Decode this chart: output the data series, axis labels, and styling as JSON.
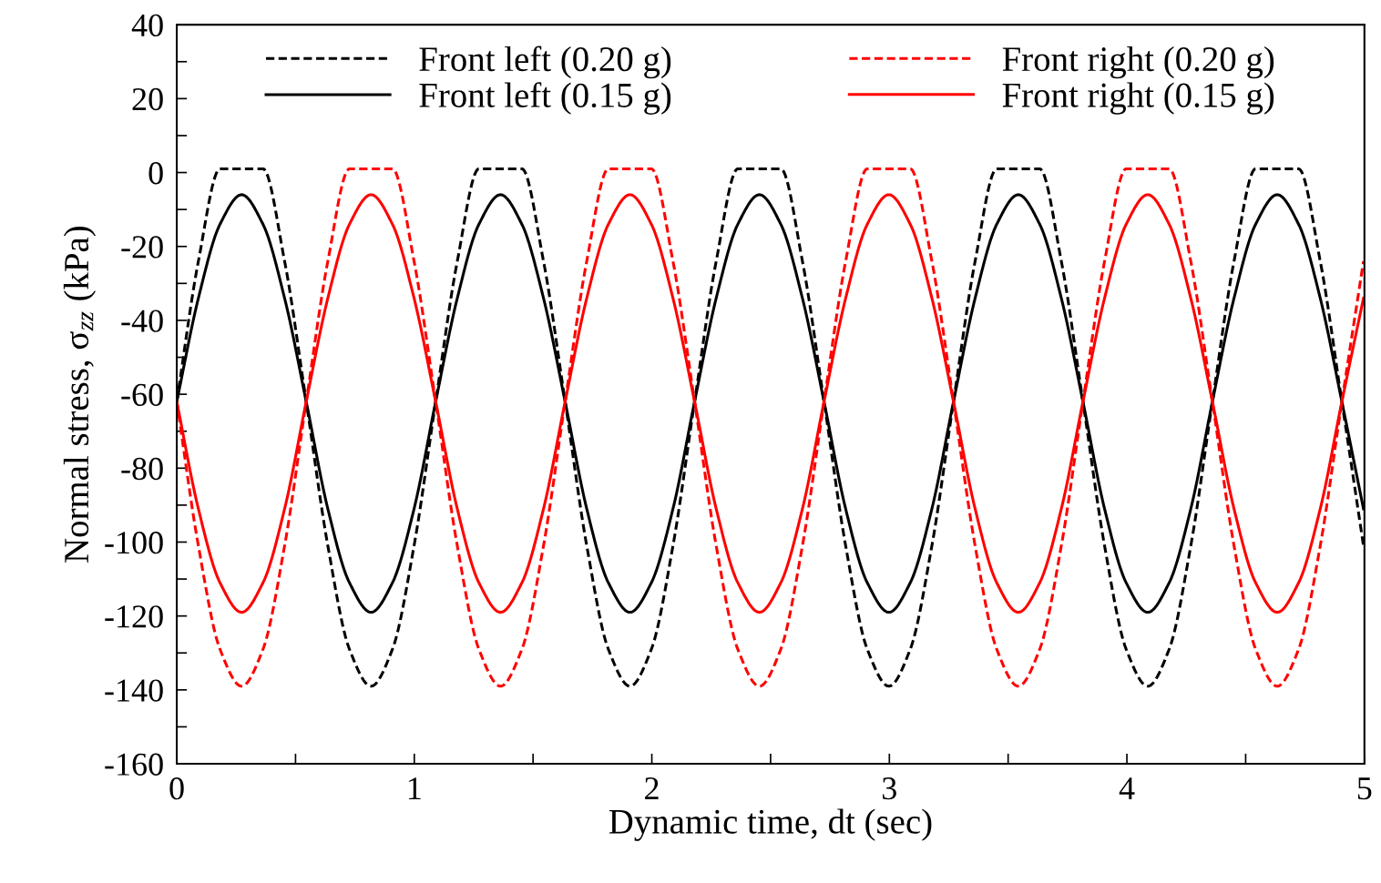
{
  "chart_data": {
    "type": "line",
    "xlabel": "Dynamic time, dt (sec)",
    "ylabel": "Normal stress, σ$_{zz}$ (kPa)",
    "x": [
      0,
      0.091,
      0.182,
      0.273,
      0.363,
      0.454,
      0.545,
      0.636,
      0.727,
      0.818,
      0.908,
      0.999,
      1.09,
      1.181,
      1.272,
      1.363,
      1.453,
      1.544,
      1.635,
      1.726,
      1.817,
      1.908,
      1.998,
      2.089,
      2.18,
      2.271,
      2.362,
      2.453,
      2.543,
      2.634,
      2.725,
      2.816,
      2.907,
      2.998,
      3.088,
      3.179,
      3.27,
      3.361,
      3.452,
      3.543,
      3.633,
      3.724,
      3.815,
      3.906,
      3.997,
      4.088,
      4.178,
      4.269,
      4.36,
      4.451,
      4.542,
      4.633,
      4.723,
      4.814,
      4.905,
      4.996
    ],
    "series": [
      {
        "name": "Front left (0.20 g)",
        "color": "#000000",
        "line_style": "dashed",
        "values": [
          -62,
          -24,
          1,
          1,
          1,
          -24,
          -62,
          -101,
          -129,
          -139,
          -129,
          -101,
          -62,
          -24,
          1,
          1,
          1,
          -24,
          -62,
          -101,
          -129,
          -139,
          -129,
          -101,
          -62,
          -24,
          1,
          1,
          1,
          -24,
          -62,
          -101,
          -129,
          -139,
          -129,
          -101,
          -62,
          -24,
          1,
          1,
          1,
          -24,
          -62,
          -101,
          -129,
          -139,
          -129,
          -101,
          -62,
          -24,
          1,
          1,
          1,
          -24,
          -62,
          -101
        ]
      },
      {
        "name": "Front left (0.15 g)",
        "color": "#000000",
        "line_style": "solid",
        "values": [
          -62,
          -34,
          -14,
          -6,
          -14,
          -34,
          -62,
          -91,
          -111,
          -119,
          -111,
          -91,
          -62,
          -34,
          -14,
          -6,
          -14,
          -34,
          -62,
          -91,
          -111,
          -119,
          -111,
          -91,
          -62,
          -34,
          -14,
          -6,
          -14,
          -34,
          -62,
          -91,
          -111,
          -119,
          -111,
          -91,
          -62,
          -34,
          -14,
          -6,
          -14,
          -34,
          -62,
          -91,
          -111,
          -119,
          -111,
          -91,
          -62,
          -34,
          -14,
          -6,
          -14,
          -34,
          -62,
          -91
        ]
      },
      {
        "name": "Front right (0.20 g)",
        "color": "#ff0000",
        "line_style": "dashed",
        "values": [
          -62,
          -101,
          -129,
          -139,
          -129,
          -101,
          -62,
          -24,
          1,
          1,
          1,
          -24,
          -62,
          -101,
          -129,
          -139,
          -129,
          -101,
          -62,
          -24,
          1,
          1,
          1,
          -24,
          -62,
          -101,
          -129,
          -139,
          -129,
          -101,
          -62,
          -24,
          1,
          1,
          1,
          -24,
          -62,
          -101,
          -129,
          -139,
          -129,
          -101,
          -62,
          -24,
          1,
          1,
          1,
          -24,
          -62,
          -101,
          -129,
          -139,
          -129,
          -101,
          -62,
          -24
        ]
      },
      {
        "name": "Front right (0.15 g)",
        "color": "#ff0000",
        "line_style": "solid",
        "values": [
          -62,
          -91,
          -111,
          -119,
          -111,
          -91,
          -62,
          -34,
          -14,
          -6,
          -14,
          -34,
          -62,
          -91,
          -111,
          -119,
          -111,
          -91,
          -62,
          -34,
          -14,
          -6,
          -14,
          -34,
          -62,
          -91,
          -111,
          -119,
          -111,
          -91,
          -62,
          -34,
          -14,
          -6,
          -14,
          -34,
          -62,
          -91,
          -111,
          -119,
          -111,
          -91,
          -62,
          -34,
          -14,
          -6,
          -14,
          -34,
          -62,
          -91,
          -111,
          -119,
          -111,
          -91,
          -62,
          -34
        ]
      }
    ],
    "xlim": [
      0,
      5
    ],
    "xticks": [
      0,
      {
        "value": 0.5,
        "label": null
      },
      1,
      {
        "value": 1.5,
        "label": null
      },
      2,
      {
        "value": 2.5,
        "label": null
      },
      3,
      {
        "value": 3.5,
        "label": null
      },
      4,
      {
        "value": 4.5,
        "label": null
      },
      5
    ],
    "ylim": [
      -160,
      40
    ],
    "yticks": [
      -160,
      {
        "value": -150,
        "label": null
      },
      -140,
      {
        "value": -130,
        "label": null
      },
      -120,
      {
        "value": -110,
        "label": null
      },
      -100,
      {
        "value": -90,
        "label": null
      },
      -80,
      {
        "value": -70,
        "label": null
      },
      -60,
      {
        "value": -50,
        "label": null
      },
      -40,
      {
        "value": -30,
        "label": null
      },
      -20,
      {
        "value": -10,
        "label": null
      },
      0,
      {
        "value": 10,
        "label": null
      },
      20,
      {
        "value": 30,
        "label": null
      },
      40
    ],
    "grid": false,
    "legend": "top",
    "marker": "none"
  }
}
